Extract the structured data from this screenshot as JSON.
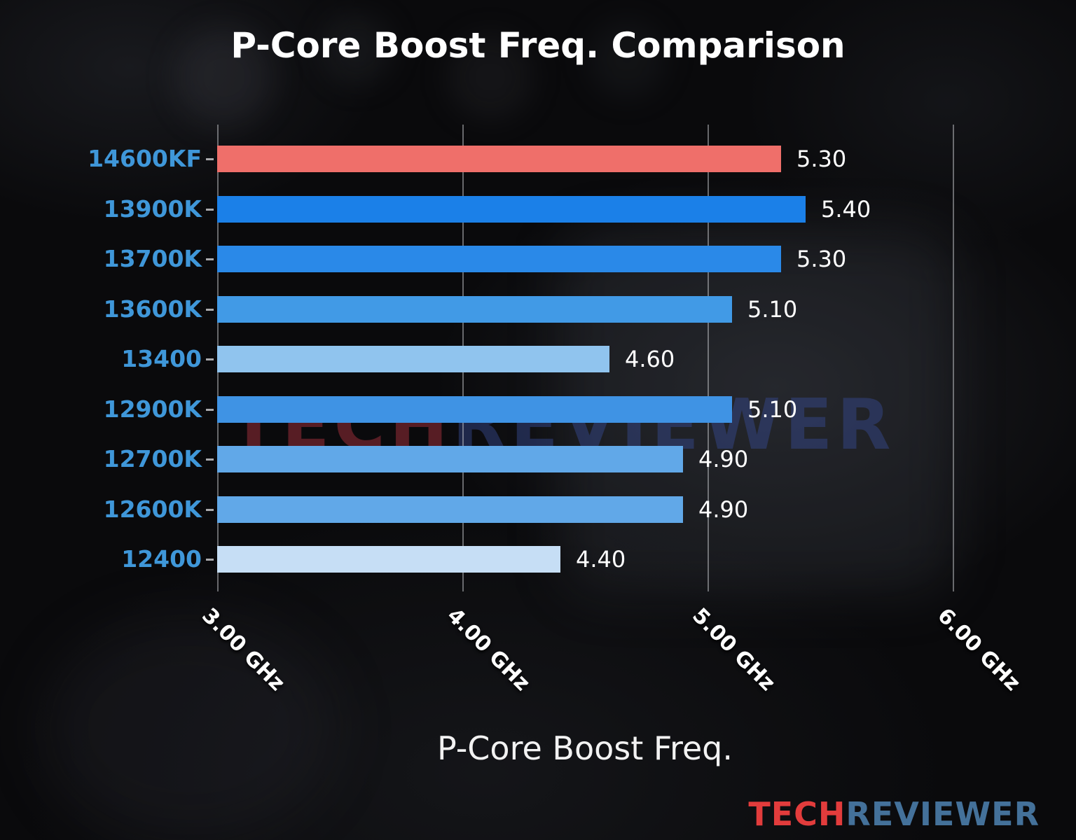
{
  "title": "P-Core Boost Freq. Comparison",
  "watermark": {
    "part1": "TECH",
    "part2": "REVIEWER"
  },
  "logo": {
    "part1": "TECH",
    "part2": "REVIEWER"
  },
  "chart_data": {
    "type": "bar",
    "orientation": "horizontal",
    "title": "P-Core Boost Freq. Comparison",
    "xlabel": "P-Core Boost Freq.",
    "ylabel": "",
    "categories": [
      "14600KF",
      "13900K",
      "13700K",
      "13600K",
      "13400",
      "12900K",
      "12700K",
      "12600K",
      "12400"
    ],
    "values": [
      5.3,
      5.4,
      5.3,
      5.1,
      4.6,
      5.1,
      4.9,
      4.9,
      4.4
    ],
    "value_labels": [
      "5.30",
      "5.40",
      "5.30",
      "5.10",
      "4.60",
      "5.10",
      "4.90",
      "4.90",
      "4.40"
    ],
    "bar_colors": [
      "#ef6f6a",
      "#1b80e8",
      "#2a89e8",
      "#419ae6",
      "#90c4ee",
      "#3f93e4",
      "#61a8e8",
      "#61a8e8",
      "#c6def5"
    ],
    "highlight_category": "14600KF",
    "highlight_color": "#ef6f6a",
    "label_color": "#3f97d9",
    "x_ticks": [
      "3.00 GHz",
      "4.00 GHz",
      "5.00 GHz",
      "6.00 GHz"
    ],
    "x_tick_values": [
      3.0,
      4.0,
      5.0,
      6.0
    ],
    "xlim": [
      3.0,
      6.0
    ],
    "grid": true,
    "legend": "none",
    "units": "GHz"
  }
}
